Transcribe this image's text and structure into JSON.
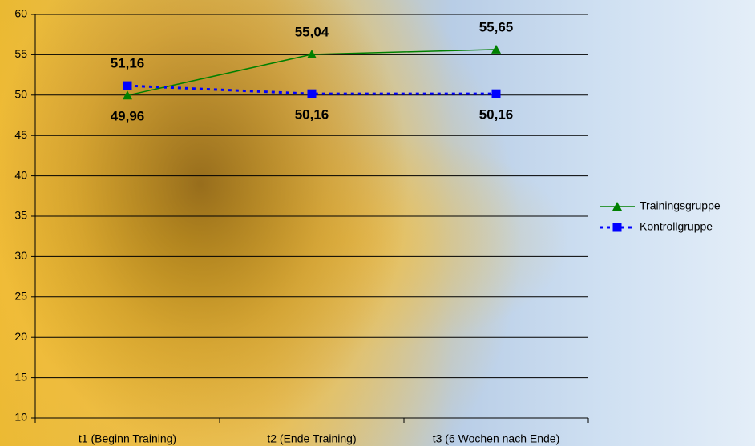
{
  "chart_data": {
    "type": "line",
    "categories": [
      "t1 (Beginn Training)",
      "t2 (Ende Training)",
      "t3 (6 Wochen nach Ende)"
    ],
    "series": [
      {
        "name": "Trainingsgruppe",
        "color": "#008000",
        "marker": "triangle",
        "dash": "solid",
        "values": [
          49.96,
          55.04,
          55.65
        ],
        "value_labels": [
          "49,96",
          "55,04",
          "55,65"
        ]
      },
      {
        "name": "Kontrollgruppe",
        "color": "#0000ff",
        "marker": "square",
        "dash": "dotted",
        "values": [
          51.16,
          50.16,
          50.16
        ],
        "value_labels": [
          "51,16",
          "50,16",
          "50,16"
        ]
      }
    ],
    "ylim": [
      10,
      60
    ],
    "yticks": [
      10,
      15,
      20,
      25,
      30,
      35,
      40,
      45,
      50,
      55,
      60
    ],
    "grid": true,
    "legend": "right"
  }
}
